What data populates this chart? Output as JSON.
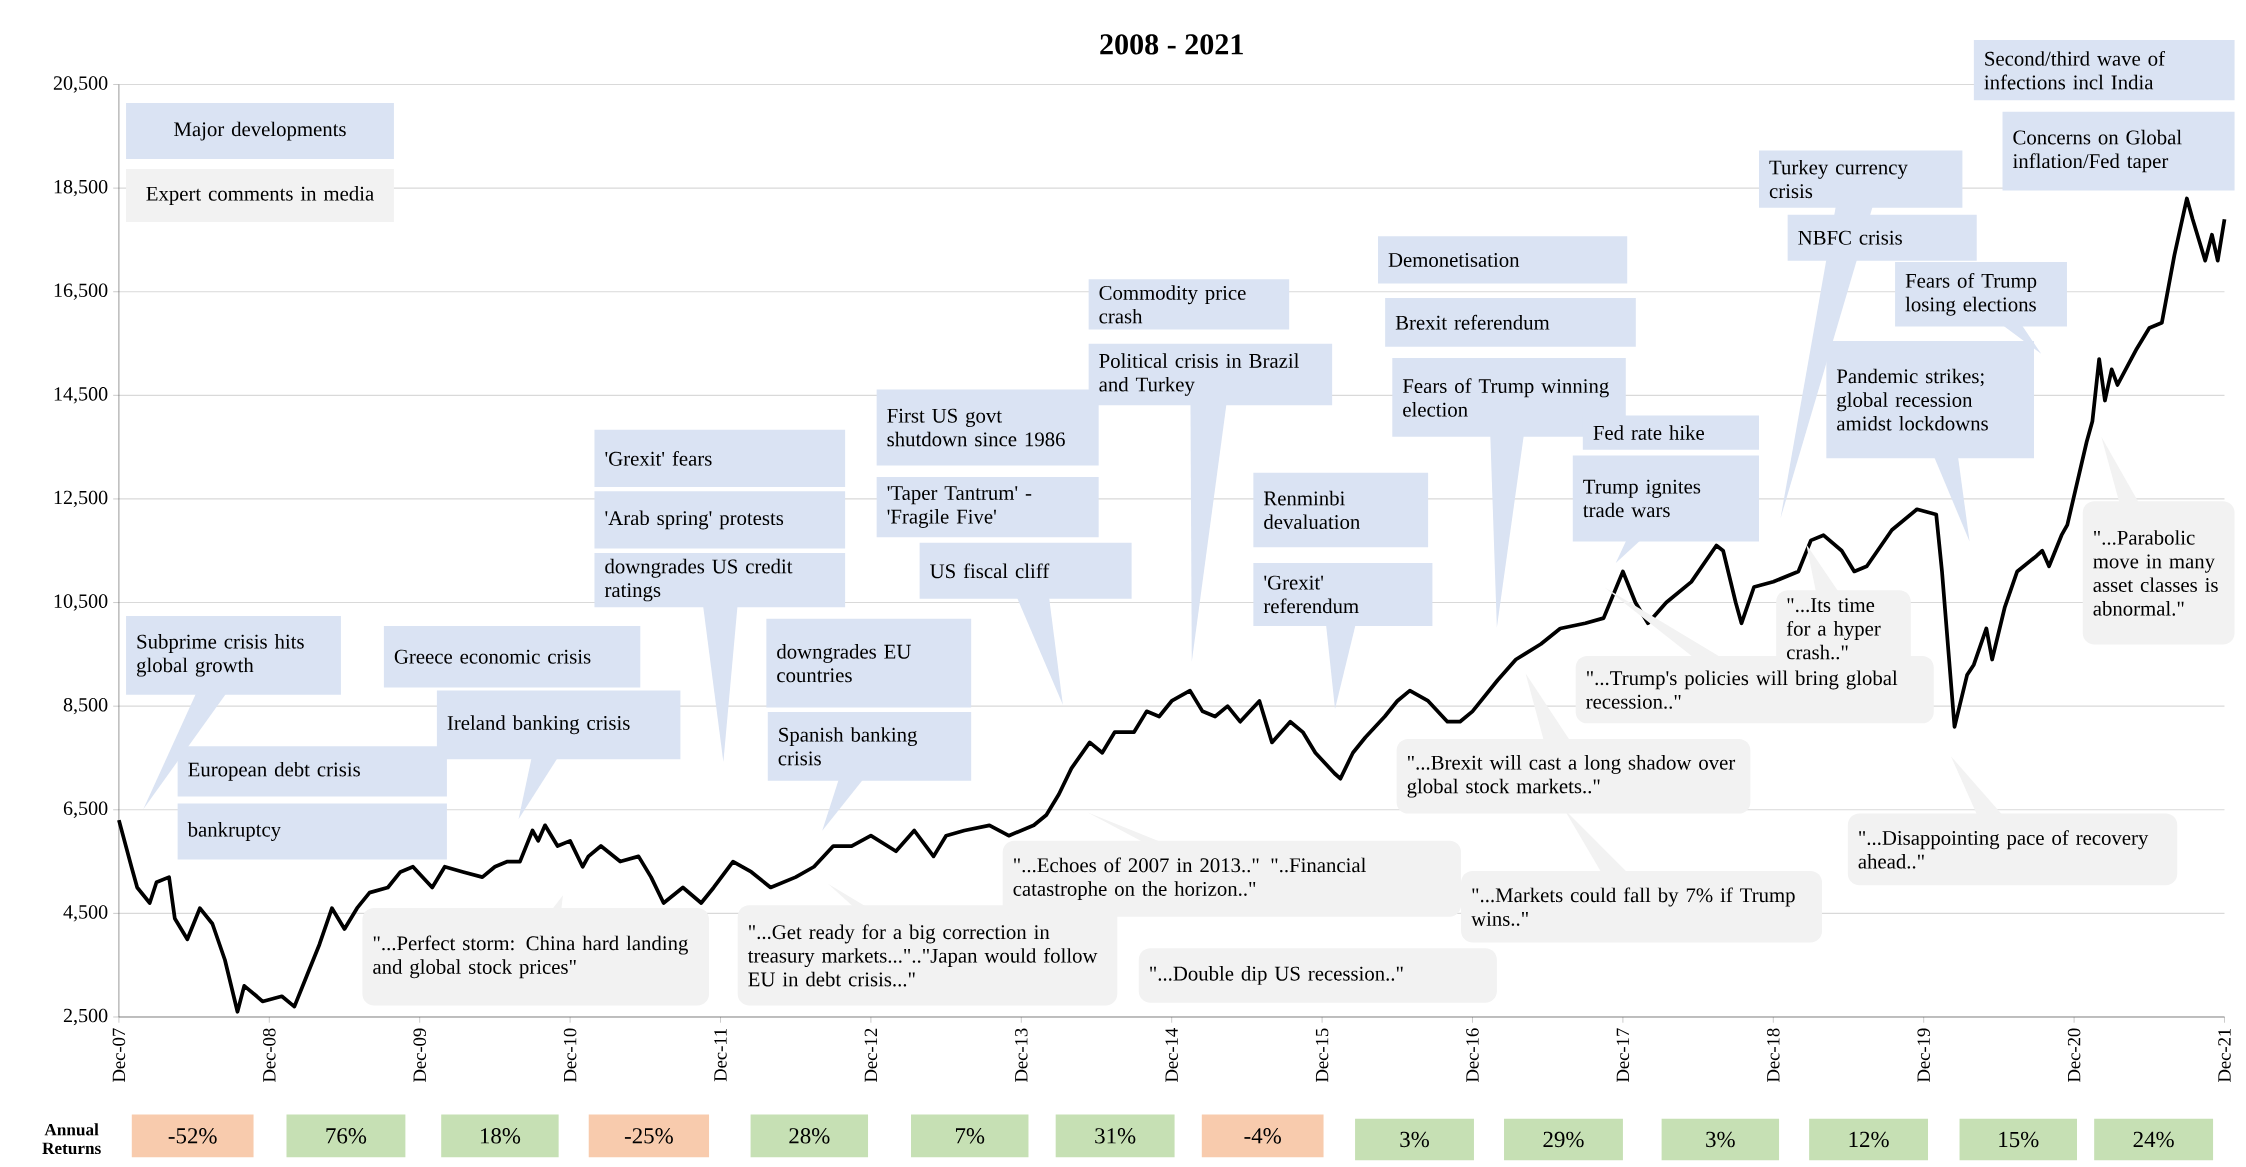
{
  "chart_data": {
    "type": "line",
    "title": "2008 - 2021",
    "color": "#000000",
    "grid": "y",
    "xlim": [
      "2007-12",
      "2021-12"
    ],
    "ylim": [
      2500,
      20500
    ],
    "xticks": [
      {
        "value": "2007-12",
        "label": "Dec-07"
      },
      {
        "value": "2008-12",
        "label": "Dec-08"
      },
      {
        "value": "2009-12",
        "label": "Dec-09"
      },
      {
        "value": "2010-12",
        "label": "Dec-10"
      },
      {
        "value": "2011-12",
        "label": "Dec-11"
      },
      {
        "value": "2012-12",
        "label": "Dec-12"
      },
      {
        "value": "2013-12",
        "label": "Dec-13"
      },
      {
        "value": "2014-12",
        "label": "Dec-14"
      },
      {
        "value": "2015-12",
        "label": "Dec-15"
      },
      {
        "value": "2016-12",
        "label": "Dec-16"
      },
      {
        "value": "2017-12",
        "label": "Dec-17"
      },
      {
        "value": "2018-12",
        "label": "Dec-18"
      },
      {
        "value": "2019-12",
        "label": "Dec-19"
      },
      {
        "value": "2020-12",
        "label": "Dec-20"
      },
      {
        "value": "2021-12",
        "label": "Dec-21"
      }
    ],
    "yticks": [
      {
        "value": 2500,
        "label": "2,500"
      },
      {
        "value": 4500,
        "label": "4,500"
      },
      {
        "value": 6500,
        "label": "6,500"
      },
      {
        "value": 8500,
        "label": "8,500"
      },
      {
        "value": 10500,
        "label": "10,500"
      },
      {
        "value": 12500,
        "label": "12,500"
      },
      {
        "value": 14500,
        "label": "14,500"
      },
      {
        "value": 16500,
        "label": "16,500"
      },
      {
        "value": 18500,
        "label": "18,500"
      },
      {
        "value": 20500,
        "label": "20,500"
      }
    ],
    "x": [
      "2007-12-01",
      "2008-01-01",
      "2008-01-15",
      "2008-02-15",
      "2008-03-01",
      "2008-04-01",
      "2008-04-15",
      "2008-05-15",
      "2008-06-15",
      "2008-07-15",
      "2008-08-15",
      "2008-09-15",
      "2008-10-01",
      "2008-11-01",
      "2008-11-15",
      "2009-01-01",
      "2009-02-01",
      "2009-03-01",
      "2009-04-01",
      "2009-05-01",
      "2009-06-01",
      "2009-07-01",
      "2009-08-01",
      "2009-09-15",
      "2009-10-15",
      "2009-11-15",
      "2010-01-01",
      "2010-02-01",
      "2010-03-15",
      "2010-05-01",
      "2010-06-01",
      "2010-07-01",
      "2010-08-01",
      "2010-09-01",
      "2010-09-15",
      "2010-10-01",
      "2010-11-01",
      "2010-12-01",
      "2011-01-01",
      "2011-01-15",
      "2011-02-15",
      "2011-04-01",
      "2011-05-15",
      "2011-06-15",
      "2011-07-15",
      "2011-09-01",
      "2011-10-15",
      "2011-11-15",
      "2012-01-01",
      "2012-02-15",
      "2012-04-01",
      "2012-06-01",
      "2012-07-15",
      "2012-09-01",
      "2012-10-15",
      "2012-12-01",
      "2013-02-01",
      "2013-03-15",
      "2013-05-01",
      "2013-06-01",
      "2013-07-15",
      "2013-09-15",
      "2013-11-01",
      "2014-01-01",
      "2014-02-01",
      "2014-03-01",
      "2014-04-01",
      "2014-05-15",
      "2014-06-15",
      "2014-07-15",
      "2014-09-01",
      "2014-10-01",
      "2014-11-01",
      "2014-12-01",
      "2015-01-15",
      "2015-02-15",
      "2015-03-15",
      "2015-04-15",
      "2015-05-15",
      "2015-07-01",
      "2015-08-01",
      "2015-09-15",
      "2015-10-15",
      "2015-11-15",
      "2016-01-01",
      "2016-01-15",
      "2016-02-15",
      "2016-03-15",
      "2016-05-01",
      "2016-06-01",
      "2016-07-01",
      "2016-08-15",
      "2016-10-01",
      "2016-11-01",
      "2016-12-01",
      "2017-02-01",
      "2017-03-15",
      "2017-05-15",
      "2017-07-01",
      "2017-09-01",
      "2017-10-15",
      "2017-12-01",
      "2018-01-01",
      "2018-02-01",
      "2018-03-15",
      "2018-05-15",
      "2018-07-15",
      "2018-08-01",
      "2018-09-01",
      "2018-09-15",
      "2018-10-15",
      "2018-12-01",
      "2019-02-01",
      "2019-03-01",
      "2019-04-01",
      "2019-05-15",
      "2019-06-15",
      "2019-07-15",
      "2019-09-15",
      "2019-11-15",
      "2020-01-01",
      "2020-01-15",
      "2020-02-15",
      "2020-03-15",
      "2020-04-01",
      "2020-05-01",
      "2020-05-15",
      "2020-06-15",
      "2020-07-15",
      "2020-09-01",
      "2020-09-15",
      "2020-10-01",
      "2020-11-01",
      "2020-11-15",
      "2021-01-01",
      "2021-01-15",
      "2021-02-01",
      "2021-02-15",
      "2021-03-01",
      "2021-03-15",
      "2021-05-01",
      "2021-06-01",
      "2021-07-01",
      "2021-08-01",
      "2021-09-01",
      "2021-09-15",
      "2021-10-15",
      "2021-11-01",
      "2021-11-15",
      "2021-12-01"
    ],
    "values": [
      6300,
      5400,
      5000,
      4700,
      5100,
      5200,
      4400,
      4000,
      4600,
      4300,
      3600,
      2600,
      3100,
      2900,
      2800,
      2900,
      2700,
      3300,
      3900,
      4600,
      4200,
      4600,
      4900,
      5000,
      5300,
      5400,
      5000,
      5400,
      5300,
      5200,
      5400,
      5500,
      5500,
      6100,
      5900,
      6200,
      5800,
      5900,
      5400,
      5600,
      5800,
      5500,
      5600,
      5200,
      4700,
      5000,
      4700,
      5000,
      5500,
      5300,
      5000,
      5200,
      5400,
      5800,
      5800,
      6000,
      5700,
      6100,
      5600,
      6000,
      6100,
      6200,
      6000,
      6200,
      6400,
      6800,
      7300,
      7800,
      7600,
      8000,
      8000,
      8400,
      8300,
      8600,
      8800,
      8400,
      8300,
      8500,
      8200,
      8600,
      7800,
      8200,
      8000,
      7600,
      7200,
      7100,
      7600,
      7900,
      8300,
      8600,
      8800,
      8600,
      8200,
      8200,
      8400,
      9000,
      9400,
      9700,
      10000,
      10100,
      10200,
      11100,
      10500,
      10100,
      10500,
      10900,
      11600,
      11500,
      10500,
      10100,
      10800,
      10900,
      11100,
      11700,
      11800,
      11500,
      11100,
      11200,
      11900,
      12300,
      12200,
      11100,
      8100,
      9100,
      9300,
      10000,
      9400,
      10400,
      11100,
      11400,
      11500,
      11200,
      11800,
      12000,
      13600,
      14000,
      15200,
      14400,
      15000,
      14700,
      15400,
      15800,
      15900,
      17200,
      18300,
      17900,
      17100,
      17600,
      17100,
      17900
    ],
    "annotations": [
      "Major developments",
      "Expert comments in media",
      "Subprime crisis hits global growth",
      "European debt crisis",
      "bankruptcy",
      "Greece economic crisis",
      "Ireland banking crisis",
      "'Grexit' fears",
      "'Arab spring' protests",
      "downgrades US credit ratings",
      "downgrades EU countries",
      "Spanish banking crisis",
      "First US govt shutdown since 1986",
      "'Taper Tantrum' - 'Fragile Five'",
      "US fiscal cliff",
      "Commodity price crash",
      "Political crisis in Brazil and Turkey",
      "Renminbi devaluation",
      "'Grexit' referendum",
      "Demonetisation",
      "Brexit referendum",
      "Fears of Trump winning election",
      "Fed rate hike",
      "Trump ignites trade wars",
      "Turkey currency crisis",
      "NBFC crisis",
      "Second/third wave of infections incl India",
      "Concerns on Global inflation/Fed taper",
      "Fears of Trump losing elections",
      "Pandemic strikes; global recession amidst lockdowns",
      "\"...Perfect storm: China hard landing and global stock prices\"",
      "\"...Get ready for a big correction in treasury markets...\"..\"Japan would follow EU in debt crisis...\"",
      "\"...Echoes of 2007 in 2013..\" \"..Financial catastrophe on the horizon..\"",
      "\"...Double dip US recession..\"",
      "\"...Brexit will cast a long shadow over global stock markets..\"",
      "\"...Markets could fall by 7% if Trump wins..\"",
      "\"...Trump's policies will bring global recession..\"",
      "\"...Its time for a hyper crash..\"",
      "\"...Disappointing pace of recovery ahead..\"",
      "\"...Parabolic move in many asset classes is abnormal.\"",
      "Annual Returns",
      "-52%",
      "76%",
      "18%",
      "-25%",
      "28%",
      "7%",
      "31%",
      "-4%",
      "3%",
      "29%",
      "3%",
      "12%",
      "15%",
      "24%"
    ]
  }
}
